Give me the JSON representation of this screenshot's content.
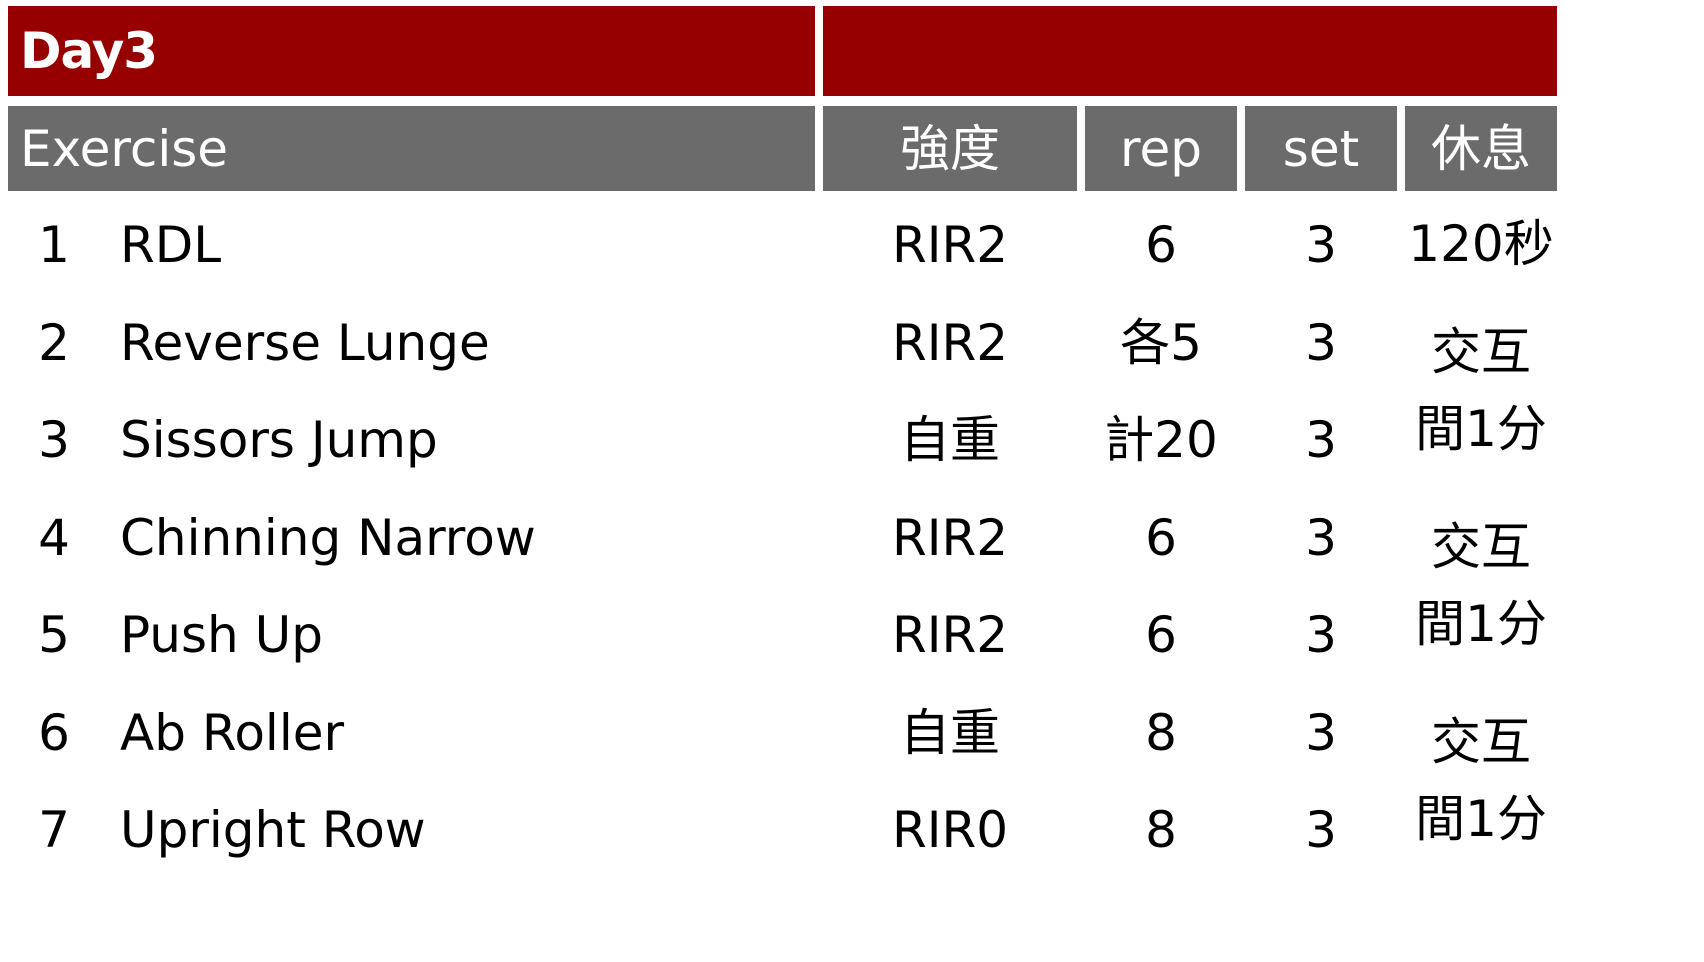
{
  "table": {
    "title": "Day3",
    "title_right": "",
    "headers": {
      "exercise": "Exercise",
      "intensity": "強度",
      "rep": "rep",
      "set": "set",
      "rest": "休息"
    },
    "rows": [
      {
        "no": "1",
        "name": "RDL",
        "intensity": "RIR2",
        "rep": "6",
        "set": "3"
      },
      {
        "no": "2",
        "name": "Reverse Lunge",
        "intensity": "RIR2",
        "rep": "各5",
        "set": "3"
      },
      {
        "no": "3",
        "name": "Sissors Jump",
        "intensity": "自重",
        "rep": "計20",
        "set": "3"
      },
      {
        "no": "4",
        "name": "Chinning Narrow",
        "intensity": "RIR2",
        "rep": "6",
        "set": "3"
      },
      {
        "no": "5",
        "name": "Push Up",
        "intensity": "RIR2",
        "rep": "6",
        "set": "3"
      },
      {
        "no": "6",
        "name": "Ab Roller",
        "intensity": "自重",
        "rep": "8",
        "set": "3"
      },
      {
        "no": "7",
        "name": "Upright Row",
        "intensity": "RIR0",
        "rep": "8",
        "set": "3"
      }
    ],
    "rest_groups": [
      {
        "lines": [
          "120秒"
        ]
      },
      {
        "lines": [
          "交互",
          "間1分"
        ]
      },
      {
        "lines": [
          "交互",
          "間1分"
        ]
      },
      {
        "lines": [
          "交互",
          "間1分"
        ]
      }
    ]
  },
  "colors": {
    "title_bar": "#960000",
    "header_bar": "#6b6b6b",
    "grid_lines": "#000000"
  }
}
